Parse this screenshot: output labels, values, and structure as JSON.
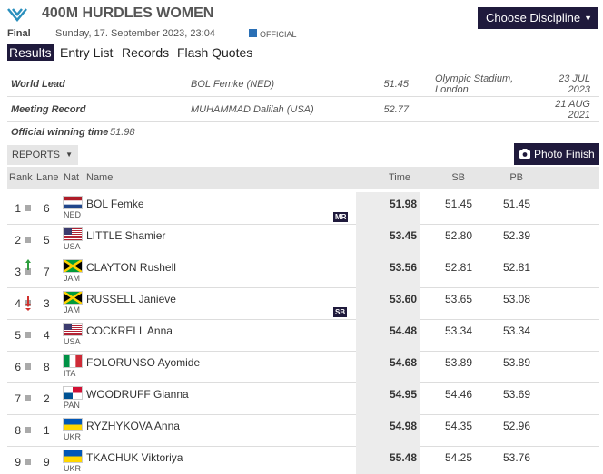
{
  "header": {
    "title": "400M HURDLES WOMEN",
    "button": "Choose Discipline",
    "round": "Final",
    "date": "Sunday, 17. September 2023, 23:04",
    "status": "OFFICIAL"
  },
  "tabs": [
    "Results",
    "Entry List",
    "Records",
    "Flash Quotes"
  ],
  "records": [
    {
      "label": "World Lead",
      "athlete": "BOL Femke (NED)",
      "mark": "51.45",
      "venue": "Olympic Stadium, London",
      "date": "23 JUL 2023"
    },
    {
      "label": "Meeting Record",
      "athlete": "MUHAMMAD Dalilah (USA)",
      "mark": "52.77",
      "date": "21 AUG 2021"
    }
  ],
  "official": {
    "label": "Official winning time",
    "value": "51.98"
  },
  "toolbar": {
    "reports": "REPORTS",
    "photo": "Photo Finish"
  },
  "table": {
    "columns": [
      "Rank",
      "Lane",
      "Nat",
      "Name",
      "Time",
      "SB",
      "PB"
    ],
    "rows": [
      {
        "rank": "1",
        "lane": "6",
        "nat": "NED",
        "name": "BOL Femke",
        "time": "51.98",
        "sb": "51.45",
        "pb": "51.45",
        "note": "MR"
      },
      {
        "rank": "2",
        "lane": "5",
        "nat": "USA",
        "name": "LITTLE Shamier",
        "time": "53.45",
        "sb": "52.80",
        "pb": "52.39"
      },
      {
        "rank": "3",
        "lane": "7",
        "nat": "JAM",
        "name": "CLAYTON Rushell",
        "time": "53.56",
        "sb": "52.81",
        "pb": "52.81"
      },
      {
        "rank": "4",
        "lane": "3",
        "nat": "JAM",
        "name": "RUSSELL Janieve",
        "time": "53.60",
        "sb": "53.65",
        "pb": "53.08",
        "note": "SB"
      },
      {
        "rank": "5",
        "lane": "4",
        "nat": "USA",
        "name": "COCKRELL Anna",
        "time": "54.48",
        "sb": "53.34",
        "pb": "53.34"
      },
      {
        "rank": "6",
        "lane": "8",
        "nat": "ITA",
        "name": "FOLORUNSO Ayomide",
        "time": "54.68",
        "sb": "53.89",
        "pb": "53.89"
      },
      {
        "rank": "7",
        "lane": "2",
        "nat": "PAN",
        "name": "WOODRUFF Gianna",
        "time": "54.95",
        "sb": "54.46",
        "pb": "53.69"
      },
      {
        "rank": "8",
        "lane": "1",
        "nat": "UKR",
        "name": "RYZHYKOVA Anna",
        "time": "54.98",
        "sb": "54.35",
        "pb": "52.96"
      },
      {
        "rank": "9",
        "lane": "9",
        "nat": "UKR",
        "name": "TKACHUK Viktoriya",
        "time": "55.48",
        "sb": "54.25",
        "pb": "53.76"
      }
    ]
  }
}
